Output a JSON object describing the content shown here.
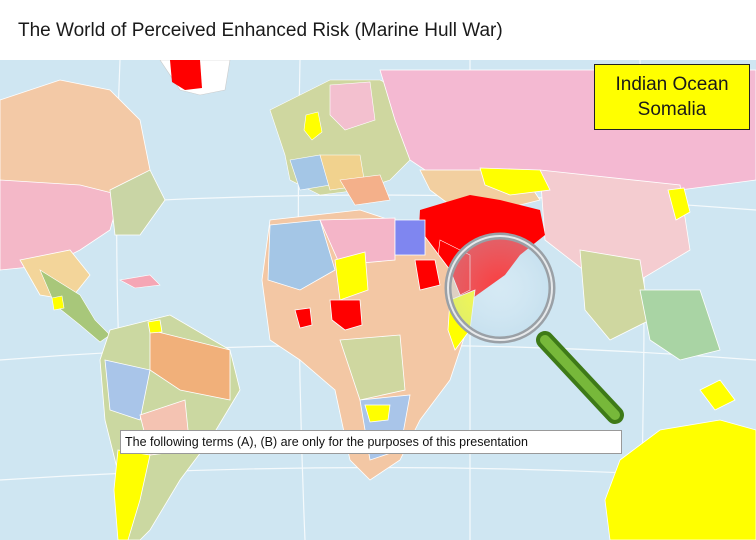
{
  "title": "The World of Perceived Enhanced Risk (Marine Hull War)",
  "callout": {
    "line1": "Indian Ocean",
    "line2": "Somalia"
  },
  "disclaimer": "The following terms (A), (B)  are only for the purposes of this presentation",
  "colors": {
    "ocean": "#cfe6f2",
    "high_risk": "#ff0000",
    "elevated_risk": "#ffff00",
    "special_zone": "#7f86f0",
    "magnifier_handle": "#5a9a2a"
  },
  "icons": {
    "magnifier": "magnifying-glass-icon"
  }
}
